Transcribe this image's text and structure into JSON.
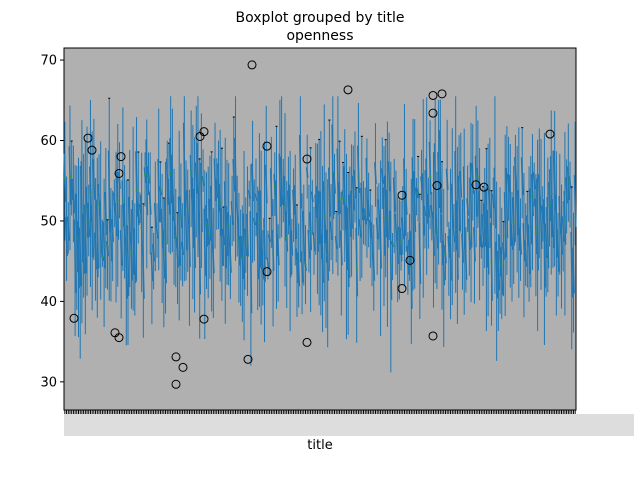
{
  "chart_data": {
    "type": "boxplot",
    "title": "Boxplot grouped by title",
    "subtitle": "openness",
    "xlabel": "title",
    "ylabel": "",
    "ylim": [
      26.5,
      71.5
    ],
    "yticks": [
      30,
      40,
      50,
      60,
      70
    ],
    "grid": false,
    "background": "#b0b0b0",
    "box_color": "#1f77b4",
    "median_color": "#2ca02c",
    "outliers": [
      [
        37.9,
        60.3,
        58.8,
        36.1,
        35.5,
        58.0,
        55.9
      ],
      [
        33.1,
        29.7,
        31.8,
        60.5,
        61.1,
        37.8
      ],
      [
        69.4,
        32.8,
        59.3,
        43.7
      ],
      [
        57.7,
        34.9
      ],
      [
        66.3
      ],
      [
        53.2,
        41.6,
        45.1,
        65.6,
        63.4,
        35.7,
        54.4,
        65.8
      ],
      [
        54.5,
        54.2
      ],
      [
        60.8
      ]
    ]
  }
}
